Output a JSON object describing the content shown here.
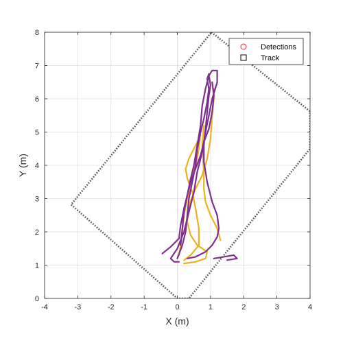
{
  "chart_data": {
    "type": "line",
    "xlabel": "X (m)",
    "ylabel": "Y (m)",
    "xlim": [
      -4,
      4
    ],
    "ylim": [
      0,
      8
    ],
    "xticks": [
      "-4",
      "-3",
      "-2",
      "-1",
      "0",
      "1",
      "2",
      "3",
      "4"
    ],
    "yticks": [
      "0",
      "1",
      "2",
      "3",
      "4",
      "5",
      "6",
      "7",
      "8"
    ],
    "grid": true,
    "legend": {
      "placement": "top-right",
      "entries": [
        {
          "label": "Detections",
          "marker": "circle",
          "color": "#e8202a"
        },
        {
          "label": "Track",
          "marker": "square",
          "color": "#000000"
        }
      ]
    },
    "boundary": {
      "style": "dotted",
      "color": "#555555",
      "points": [
        [
          1.03,
          8.0
        ],
        [
          4.0,
          5.62
        ],
        [
          4.0,
          4.5
        ],
        [
          0.35,
          0.0
        ],
        [
          0.0,
          0.0
        ],
        [
          -3.2,
          2.82
        ],
        [
          1.03,
          8.0
        ]
      ]
    },
    "series": [
      {
        "color": "#edb120",
        "points": [
          [
            1.3,
            1.75
          ],
          [
            1.2,
            2.1
          ],
          [
            1.0,
            2.5
          ],
          [
            0.85,
            2.9
          ],
          [
            0.8,
            3.3
          ],
          [
            0.8,
            3.7
          ],
          [
            0.78,
            4.1
          ],
          [
            0.75,
            4.6
          ],
          [
            0.8,
            5.2
          ]
        ]
      },
      {
        "color": "#edb120",
        "points": [
          [
            0.2,
            1.15
          ],
          [
            0.4,
            1.3
          ],
          [
            0.65,
            1.6
          ],
          [
            0.65,
            2.1
          ],
          [
            0.55,
            2.7
          ],
          [
            0.45,
            3.2
          ],
          [
            0.3,
            3.6
          ],
          [
            0.25,
            3.9
          ],
          [
            0.35,
            4.2
          ],
          [
            0.55,
            4.6
          ],
          [
            0.7,
            4.9
          ]
        ]
      },
      {
        "color": "#edb120",
        "points": [
          [
            0.2,
            1.05
          ],
          [
            0.55,
            1.1
          ],
          [
            0.85,
            1.2
          ],
          [
            0.9,
            1.4
          ],
          [
            0.6,
            1.6
          ],
          [
            0.4,
            1.9
          ],
          [
            0.3,
            2.3
          ],
          [
            0.35,
            2.8
          ],
          [
            0.55,
            3.3
          ],
          [
            0.75,
            3.7
          ],
          [
            0.9,
            4.2
          ],
          [
            1.0,
            4.8
          ],
          [
            1.05,
            5.5
          ],
          [
            1.1,
            6.0
          ],
          [
            1.1,
            6.3
          ]
        ]
      },
      {
        "color": "#edb120",
        "points": [
          [
            0.05,
            1.3
          ],
          [
            0.1,
            1.6
          ],
          [
            0.15,
            2.0
          ],
          [
            0.2,
            2.5
          ],
          [
            0.3,
            3.0
          ],
          [
            0.4,
            3.5
          ],
          [
            0.55,
            4.0
          ],
          [
            0.65,
            4.5
          ],
          [
            0.7,
            5.0
          ]
        ]
      },
      {
        "color": "#7e2f8e",
        "points": [
          [
            -0.45,
            1.35
          ],
          [
            -0.2,
            1.55
          ],
          [
            0.05,
            1.8
          ],
          [
            0.1,
            2.2
          ],
          [
            0.2,
            2.7
          ],
          [
            0.3,
            3.1
          ],
          [
            0.4,
            3.6
          ],
          [
            0.5,
            4.0
          ],
          [
            0.6,
            4.6
          ],
          [
            0.7,
            5.2
          ],
          [
            0.75,
            5.8
          ],
          [
            0.85,
            6.3
          ],
          [
            0.95,
            6.7
          ],
          [
            1.05,
            6.85
          ],
          [
            1.2,
            6.85
          ],
          [
            1.2,
            6.5
          ],
          [
            1.05,
            6.0
          ],
          [
            0.95,
            5.5
          ],
          [
            0.85,
            5.0
          ],
          [
            0.75,
            4.4
          ],
          [
            0.6,
            3.8
          ],
          [
            0.5,
            3.2
          ],
          [
            0.35,
            2.6
          ],
          [
            0.2,
            2.0
          ],
          [
            0.0,
            1.5
          ],
          [
            -0.2,
            1.2
          ],
          [
            -0.1,
            1.1
          ],
          [
            0.05,
            1.1
          ]
        ]
      },
      {
        "color": "#7e2f8e",
        "points": [
          [
            0.3,
            1.2
          ],
          [
            0.55,
            1.25
          ],
          [
            0.85,
            1.4
          ],
          [
            1.05,
            1.6
          ],
          [
            1.2,
            1.85
          ],
          [
            1.25,
            2.1
          ],
          [
            1.2,
            2.5
          ],
          [
            1.05,
            2.9
          ],
          [
            0.9,
            3.5
          ],
          [
            0.8,
            4.1
          ],
          [
            0.8,
            4.6
          ],
          [
            0.85,
            5.1
          ],
          [
            0.9,
            5.6
          ],
          [
            0.95,
            6.1
          ],
          [
            1.0,
            6.4
          ],
          [
            0.95,
            6.7
          ]
        ]
      },
      {
        "color": "#7e2f8e",
        "points": [
          [
            1.1,
            1.2
          ],
          [
            1.4,
            1.25
          ],
          [
            1.7,
            1.3
          ],
          [
            1.8,
            1.2
          ],
          [
            1.5,
            1.15
          ]
        ]
      },
      {
        "color": "#7e2f8e",
        "points": [
          [
            0.0,
            1.2
          ],
          [
            0.15,
            1.6
          ],
          [
            0.25,
            2.0
          ],
          [
            0.3,
            2.5
          ],
          [
            0.35,
            3.0
          ],
          [
            0.45,
            3.5
          ],
          [
            0.55,
            4.0
          ],
          [
            0.6,
            4.5
          ],
          [
            0.7,
            5.0
          ],
          [
            0.8,
            5.4
          ],
          [
            0.9,
            5.9
          ],
          [
            0.95,
            6.3
          ],
          [
            0.9,
            6.6
          ],
          [
            0.95,
            6.75
          ]
        ]
      },
      {
        "color": "#7e2f8e",
        "points": [
          [
            0.1,
            1.6
          ],
          [
            0.15,
            2.1
          ],
          [
            0.2,
            2.6
          ],
          [
            0.3,
            3.1
          ],
          [
            0.4,
            3.5
          ],
          [
            0.55,
            3.9
          ],
          [
            0.7,
            4.3
          ],
          [
            0.8,
            4.7
          ],
          [
            0.95,
            5.1
          ],
          [
            1.05,
            5.6
          ],
          [
            1.1,
            6.1
          ],
          [
            1.05,
            6.5
          ]
        ]
      }
    ]
  }
}
